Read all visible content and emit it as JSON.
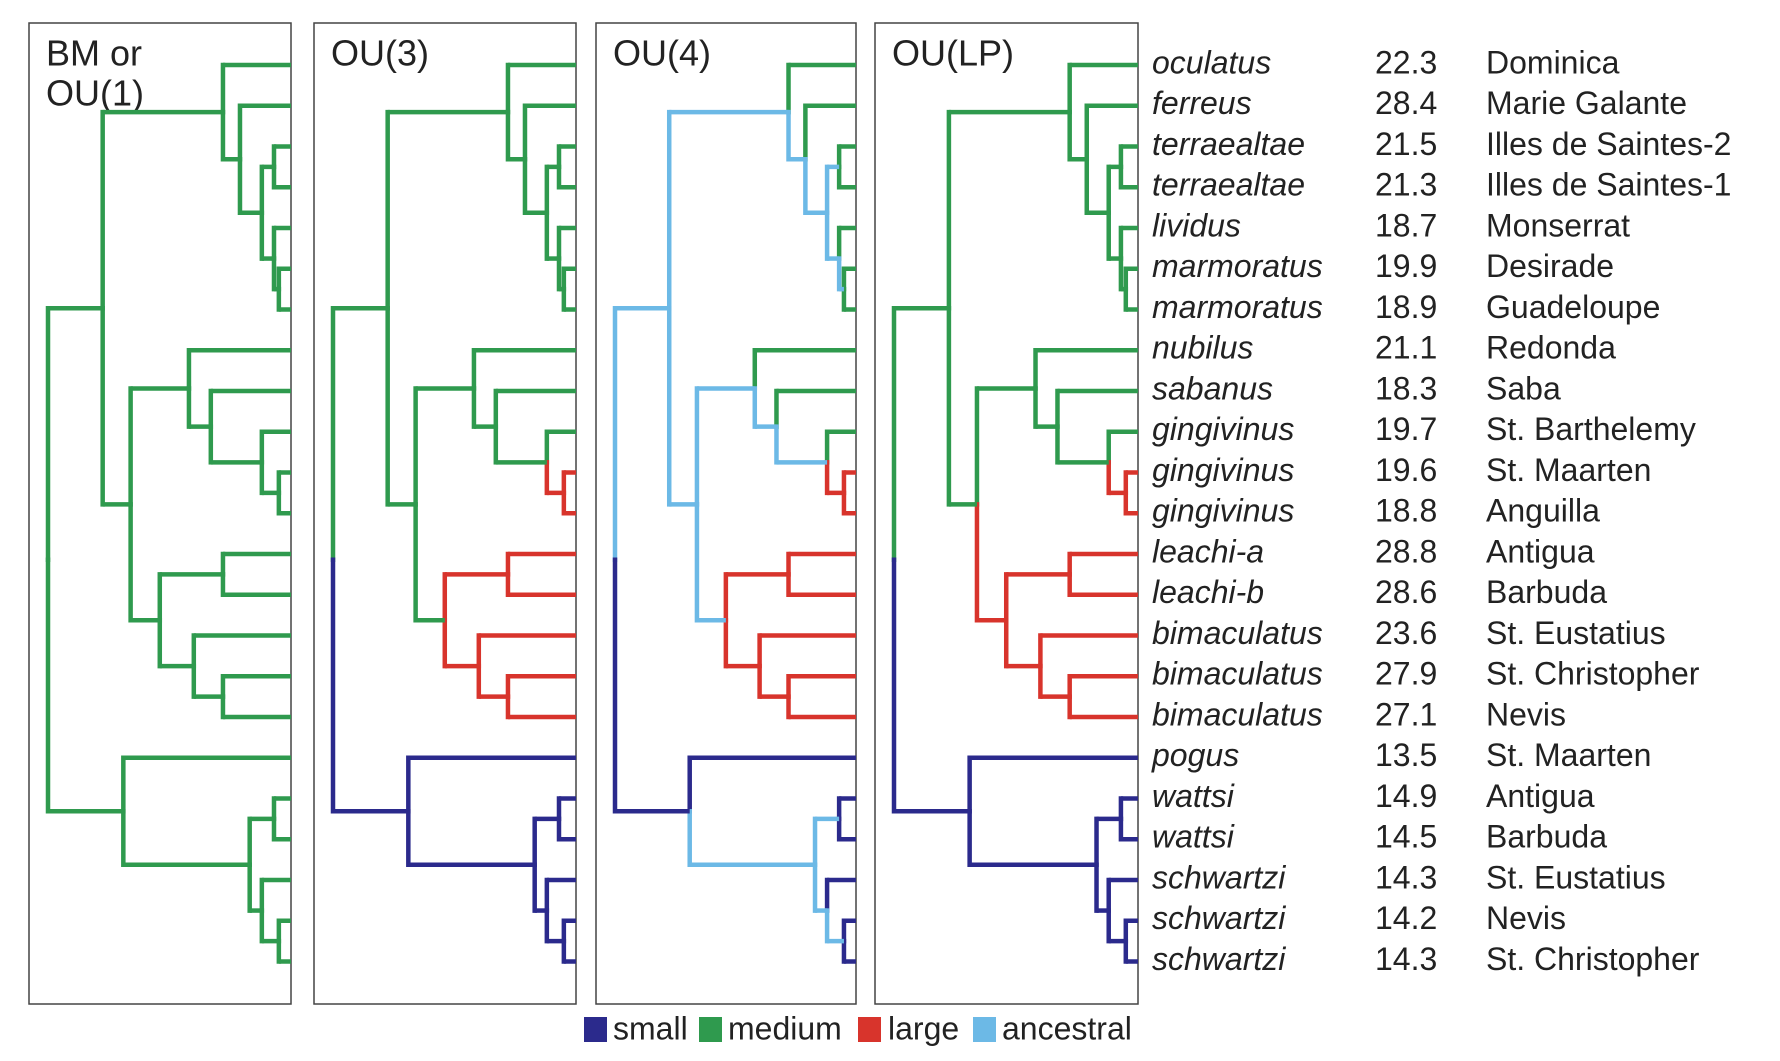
{
  "panels": [
    {
      "title": [
        "BM or",
        "OU(1)"
      ]
    },
    {
      "title": [
        "OU(3)"
      ]
    },
    {
      "title": [
        "OU(4)"
      ]
    },
    {
      "title": [
        "OU(LP)"
      ]
    }
  ],
  "tips": [
    {
      "species": "oculatus",
      "value": 22.3,
      "island": "Dominica"
    },
    {
      "species": "ferreus",
      "value": 28.4,
      "island": "Marie Galante"
    },
    {
      "species": "terraealtae",
      "value": 21.5,
      "island": "Illes de Saintes-2"
    },
    {
      "species": "terraealtae",
      "value": 21.3,
      "island": "Illes de Saintes-1"
    },
    {
      "species": "lividus",
      "value": 18.7,
      "island": "Monserrat"
    },
    {
      "species": "marmoratus",
      "value": 19.9,
      "island": "Desirade"
    },
    {
      "species": "marmoratus",
      "value": 18.9,
      "island": "Guadeloupe"
    },
    {
      "species": "nubilus",
      "value": 21.1,
      "island": "Redonda"
    },
    {
      "species": "sabanus",
      "value": 18.3,
      "island": "Saba"
    },
    {
      "species": "gingivinus",
      "value": 19.7,
      "island": "St. Barthelemy"
    },
    {
      "species": "gingivinus",
      "value": 19.6,
      "island": "St. Maarten"
    },
    {
      "species": "gingivinus",
      "value": 18.8,
      "island": "Anguilla"
    },
    {
      "species": "leachi-a",
      "value": 28.8,
      "island": "Antigua"
    },
    {
      "species": "leachi-b",
      "value": 28.6,
      "island": "Barbuda"
    },
    {
      "species": "bimaculatus",
      "value": 23.6,
      "island": "St. Eustatius"
    },
    {
      "species": "bimaculatus",
      "value": 27.9,
      "island": "St. Christopher"
    },
    {
      "species": "bimaculatus",
      "value": 27.1,
      "island": "Nevis"
    },
    {
      "species": "pogus",
      "value": 13.5,
      "island": "St. Maarten"
    },
    {
      "species": "wattsi",
      "value": 14.9,
      "island": "Antigua"
    },
    {
      "species": "wattsi",
      "value": 14.5,
      "island": "Barbuda"
    },
    {
      "species": "schwartzi",
      "value": 14.3,
      "island": "St. Eustatius"
    },
    {
      "species": "schwartzi",
      "value": 14.2,
      "island": "Nevis"
    },
    {
      "species": "schwartzi",
      "value": 14.3,
      "island": "St. Christopher"
    }
  ],
  "legend": [
    {
      "label": "small",
      "color": "#2b2a8c"
    },
    {
      "label": "medium",
      "color": "#2f9a4e"
    },
    {
      "label": "large",
      "color": "#d8342c"
    },
    {
      "label": "ancestral",
      "color": "#6cb9e6"
    }
  ]
}
